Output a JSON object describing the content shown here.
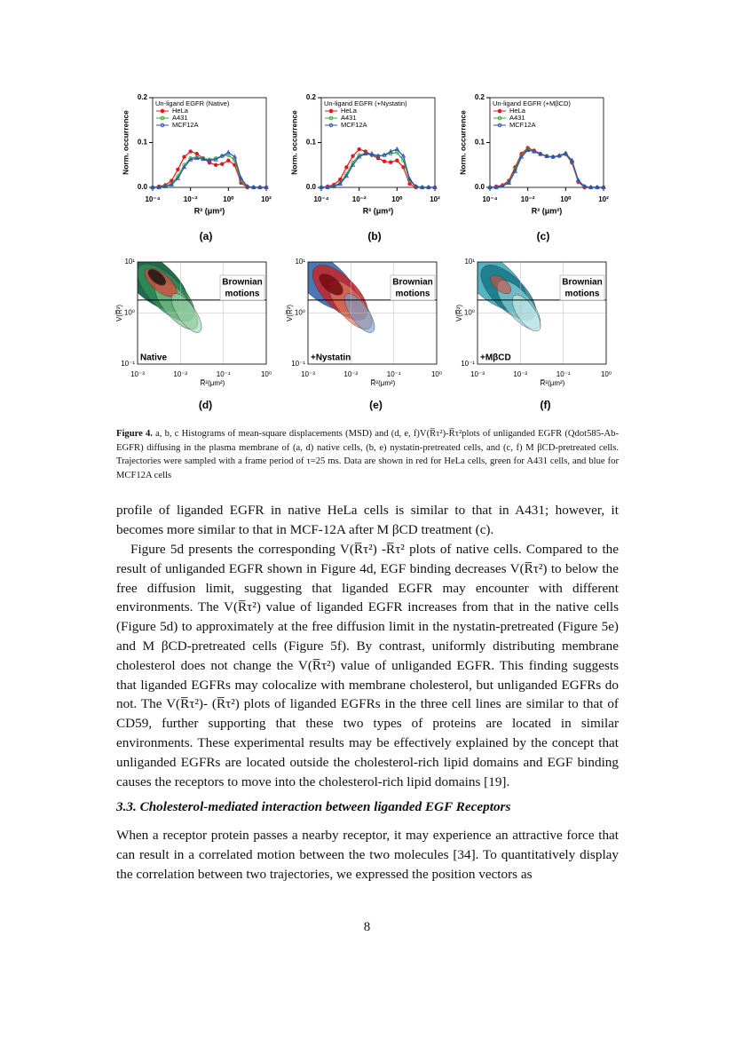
{
  "chart_data": [
    {
      "type": "line",
      "panel_label": "(a)",
      "title": "Un-ligand EGFR (Native)",
      "x_label": "R² (μm²)",
      "y_label": "Norm. occurrence",
      "xscale": "log",
      "legend": "upper left",
      "x": [
        0.0001,
        0.000215,
        0.000464,
        0.001,
        0.00215,
        0.00464,
        0.01,
        0.0215,
        0.0464,
        0.1,
        0.215,
        0.464,
        1,
        2.15,
        4.64,
        10,
        21.5,
        46.4,
        100
      ],
      "xlim": [
        0.0001,
        100
      ],
      "xticks": [
        {
          "value": 0.0001,
          "label": "10⁻⁴"
        },
        {
          "value": 0.01,
          "label": "10⁻²"
        },
        {
          "value": 1,
          "label": "10⁰"
        },
        {
          "value": 100,
          "label": "10²"
        }
      ],
      "ylim": [
        0,
        0.2
      ],
      "yticks": [
        {
          "value": 0,
          "label": "0.0"
        },
        0.1,
        0.2
      ],
      "series": [
        {
          "name": "HeLa",
          "color": "#e8141c",
          "values": [
            0,
            0.002,
            0.005,
            0.015,
            0.04,
            0.068,
            0.08,
            0.075,
            0.065,
            0.055,
            0.05,
            0.052,
            0.06,
            0.05,
            0.01,
            0,
            0,
            0,
            0
          ]
        },
        {
          "name": "A431",
          "color": "#3aa635",
          "values": [
            0,
            0,
            0.003,
            0.008,
            0.025,
            0.05,
            0.065,
            0.068,
            0.065,
            0.062,
            0.065,
            0.07,
            0.072,
            0.06,
            0.015,
            0.002,
            0,
            0,
            0
          ]
        },
        {
          "name": "MCF12A",
          "color": "#2b4fb5",
          "values": [
            0,
            0,
            0.002,
            0.006,
            0.02,
            0.045,
            0.062,
            0.065,
            0.063,
            0.06,
            0.062,
            0.07,
            0.078,
            0.068,
            0.02,
            0.002,
            0,
            0,
            0
          ]
        }
      ]
    },
    {
      "type": "line",
      "panel_label": "(b)",
      "title": "Un-ligand EGFR (+Nystatin)",
      "x_label": "R² (μm²)",
      "y_label": "Norm. occurrence",
      "xscale": "log",
      "legend": "upper left",
      "x": [
        0.0001,
        0.000215,
        0.000464,
        0.001,
        0.00215,
        0.00464,
        0.01,
        0.0215,
        0.0464,
        0.1,
        0.215,
        0.464,
        1,
        2.15,
        4.64,
        10,
        21.5,
        46.4,
        100
      ],
      "xlim": [
        0.0001,
        100
      ],
      "xticks": [
        {
          "value": 0.0001,
          "label": "10⁻⁴"
        },
        {
          "value": 0.01,
          "label": "10⁻²"
        },
        {
          "value": 1,
          "label": "10⁰"
        },
        {
          "value": 100,
          "label": "10²"
        }
      ],
      "ylim": [
        0,
        0.2
      ],
      "yticks": [
        {
          "value": 0,
          "label": "0.0"
        },
        0.1,
        0.2
      ],
      "series": [
        {
          "name": "HeLa",
          "color": "#e8141c",
          "values": [
            0,
            0.002,
            0.006,
            0.018,
            0.045,
            0.07,
            0.085,
            0.08,
            0.072,
            0.065,
            0.058,
            0.056,
            0.06,
            0.045,
            0.008,
            0,
            0,
            0,
            0
          ]
        },
        {
          "name": "A431",
          "color": "#3aa635",
          "values": [
            0,
            0,
            0.003,
            0.01,
            0.03,
            0.055,
            0.072,
            0.075,
            0.072,
            0.07,
            0.072,
            0.075,
            0.078,
            0.06,
            0.015,
            0.002,
            0,
            0,
            0
          ]
        },
        {
          "name": "MCF12A",
          "color": "#2b4fb5",
          "values": [
            0,
            0,
            0.002,
            0.008,
            0.025,
            0.05,
            0.068,
            0.075,
            0.075,
            0.07,
            0.072,
            0.08,
            0.085,
            0.07,
            0.018,
            0.002,
            0,
            0,
            0
          ]
        }
      ]
    },
    {
      "type": "line",
      "panel_label": "(c)",
      "title": "Un-ligand EGFR (+MβCD)",
      "x_label": "R² (μm²)",
      "y_label": "Norm. occurrence",
      "xscale": "log",
      "legend": "upper left",
      "x": [
        0.0001,
        0.000215,
        0.000464,
        0.001,
        0.00215,
        0.00464,
        0.01,
        0.0215,
        0.0464,
        0.1,
        0.215,
        0.464,
        1,
        2.15,
        4.64,
        10,
        21.5,
        46.4,
        100
      ],
      "xlim": [
        0.0001,
        100
      ],
      "xticks": [
        {
          "value": 0.0001,
          "label": "10⁻⁴"
        },
        {
          "value": 0.01,
          "label": "10⁻²"
        },
        {
          "value": 1,
          "label": "10⁰"
        },
        {
          "value": 100,
          "label": "10²"
        }
      ],
      "ylim": [
        0,
        0.2
      ],
      "yticks": [
        {
          "value": 0,
          "label": "0.0"
        },
        0.1,
        0.2
      ],
      "series": [
        {
          "name": "HeLa",
          "color": "#e8141c",
          "values": [
            0,
            0.002,
            0.005,
            0.015,
            0.045,
            0.075,
            0.088,
            0.082,
            0.075,
            0.07,
            0.068,
            0.07,
            0.074,
            0.055,
            0.012,
            0,
            0,
            0,
            0
          ]
        },
        {
          "name": "A431",
          "color": "#3aa635",
          "values": [
            0,
            0,
            0.004,
            0.012,
            0.04,
            0.072,
            0.085,
            0.08,
            0.074,
            0.07,
            0.068,
            0.07,
            0.075,
            0.058,
            0.014,
            0.002,
            0,
            0,
            0
          ]
        },
        {
          "name": "MCF12A",
          "color": "#2b4fb5",
          "values": [
            0,
            0,
            0.003,
            0.01,
            0.036,
            0.068,
            0.083,
            0.08,
            0.074,
            0.069,
            0.068,
            0.071,
            0.076,
            0.06,
            0.016,
            0.002,
            0,
            0,
            0
          ]
        }
      ]
    },
    {
      "type": "contour",
      "panel_label": "(d)",
      "annotation": "Native",
      "region_label": [
        "Brownian",
        "motions"
      ],
      "x_label": "R̅²(μm²)",
      "y_label": "V(R̅²)",
      "xscale": "log",
      "yscale": "log",
      "xlim": [
        0.001,
        1
      ],
      "xticks": [
        {
          "value": 0.001,
          "label": "10⁻³"
        },
        {
          "value": 0.01,
          "label": "10⁻²"
        },
        {
          "value": 0.1,
          "label": "10⁻¹"
        },
        {
          "value": 1,
          "label": "10⁰"
        }
      ],
      "ylim": [
        0.1,
        10
      ],
      "yticks": [
        {
          "value": 0.1,
          "label": "10⁻¹"
        },
        {
          "value": 1,
          "label": "10⁰"
        },
        {
          "value": 10,
          "label": "10¹"
        }
      ],
      "reference_y": 1.8
    },
    {
      "type": "contour",
      "panel_label": "(e)",
      "annotation": "+Nystatin",
      "region_label": [
        "Brownian",
        "motions"
      ],
      "x_label": "R̅²(μm²)",
      "y_label": "V(R̅²)",
      "xscale": "log",
      "yscale": "log",
      "xlim": [
        0.001,
        1
      ],
      "xticks": [
        {
          "value": 0.001,
          "label": "10⁻³"
        },
        {
          "value": 0.01,
          "label": "10⁻²"
        },
        {
          "value": 0.1,
          "label": "10⁻¹"
        },
        {
          "value": 1,
          "label": "10⁰"
        }
      ],
      "ylim": [
        0.1,
        10
      ],
      "yticks": [
        {
          "value": 0.1,
          "label": "10⁻¹"
        },
        {
          "value": 1,
          "label": "10⁰"
        },
        {
          "value": 10,
          "label": "10¹"
        }
      ],
      "reference_y": 1.8
    },
    {
      "type": "contour",
      "panel_label": "(f)",
      "annotation": "+MβCD",
      "region_label": [
        "Brownian",
        "motions"
      ],
      "x_label": "R̅²(μm²)",
      "y_label": "V(R̅²)",
      "xscale": "log",
      "yscale": "log",
      "xlim": [
        0.001,
        1
      ],
      "xticks": [
        {
          "value": 0.001,
          "label": "10⁻³"
        },
        {
          "value": 0.01,
          "label": "10⁻²"
        },
        {
          "value": 0.1,
          "label": "10⁻¹"
        },
        {
          "value": 1,
          "label": "10⁰"
        }
      ],
      "ylim": [
        0.1,
        10
      ],
      "yticks": [
        {
          "value": 0.1,
          "label": "10⁻¹"
        },
        {
          "value": 1,
          "label": "10⁰"
        },
        {
          "value": 10,
          "label": "10¹"
        }
      ],
      "reference_y": 1.8
    }
  ],
  "caption": {
    "label": "Figure 4.",
    "text": "a, b, c Histograms of mean-square displacements (MSD) and (d, e, f)V(R̅τ²)-R̅τ²plots of unliganded EGFR (Qdot585-Ab-EGFR) diffusing in the plasma membrane of (a, d) native cells, (b, e) nystatin-pretreated cells, and (c, f) M βCD-pretreated cells. Trajectories were sampled with a frame period of τ=25 ms. Data are shown in red for HeLa cells, green for A431 cells, and blue for MCF12A cells"
  },
  "body": {
    "paragraphs": [
      "profile of liganded EGFR in native HeLa cells is similar to that in A431; however, it becomes more similar to that in MCF-12A after M βCD treatment (c).",
      "Figure 5d presents the corresponding V(R̅τ²) -R̅τ² plots of native cells. Compared to the result of unliganded EGFR shown in Figure 4d, EGF binding decreases V(R̅τ²) to below the free diffusion limit, suggesting that liganded EGFR may encounter with different environments. The V(R̅τ²) value of liganded EGFR increases from that in the native cells (Figure 5d) to approximately at the free diffusion limit in the nystatin-pretreated (Figure 5e) and M βCD-pretreated cells (Figure 5f). By contrast, uniformly distributing membrane cholesterol does not change the V(R̅τ²) value of unliganded EGFR. This finding suggests that liganded EGFRs may colocalize with membrane cholesterol, but unliganded EGFRs do not. The V(R̅τ²)- (R̅τ²) plots of liganded EGFRs in the three cell lines are similar to that of CD59, further supporting that these two types of proteins are located in similar environments. These experimental results may be effectively explained by the concept that unliganded EGFRs are located outside the cholesterol-rich lipid domains and EGF binding causes the receptors to move into the cholesterol-rich lipid domains [19]."
    ],
    "heading": "3.3. Cholesterol-mediated interaction between liganded EGF Receptors",
    "section_paragraph": "When a receptor protein passes a nearby receptor, it may experience an attractive force that can result in a correlated motion between the two molecules [34]. To quantitatively display the correlation between two trajectories, we expressed the position vectors as",
    "page_number": "8"
  }
}
